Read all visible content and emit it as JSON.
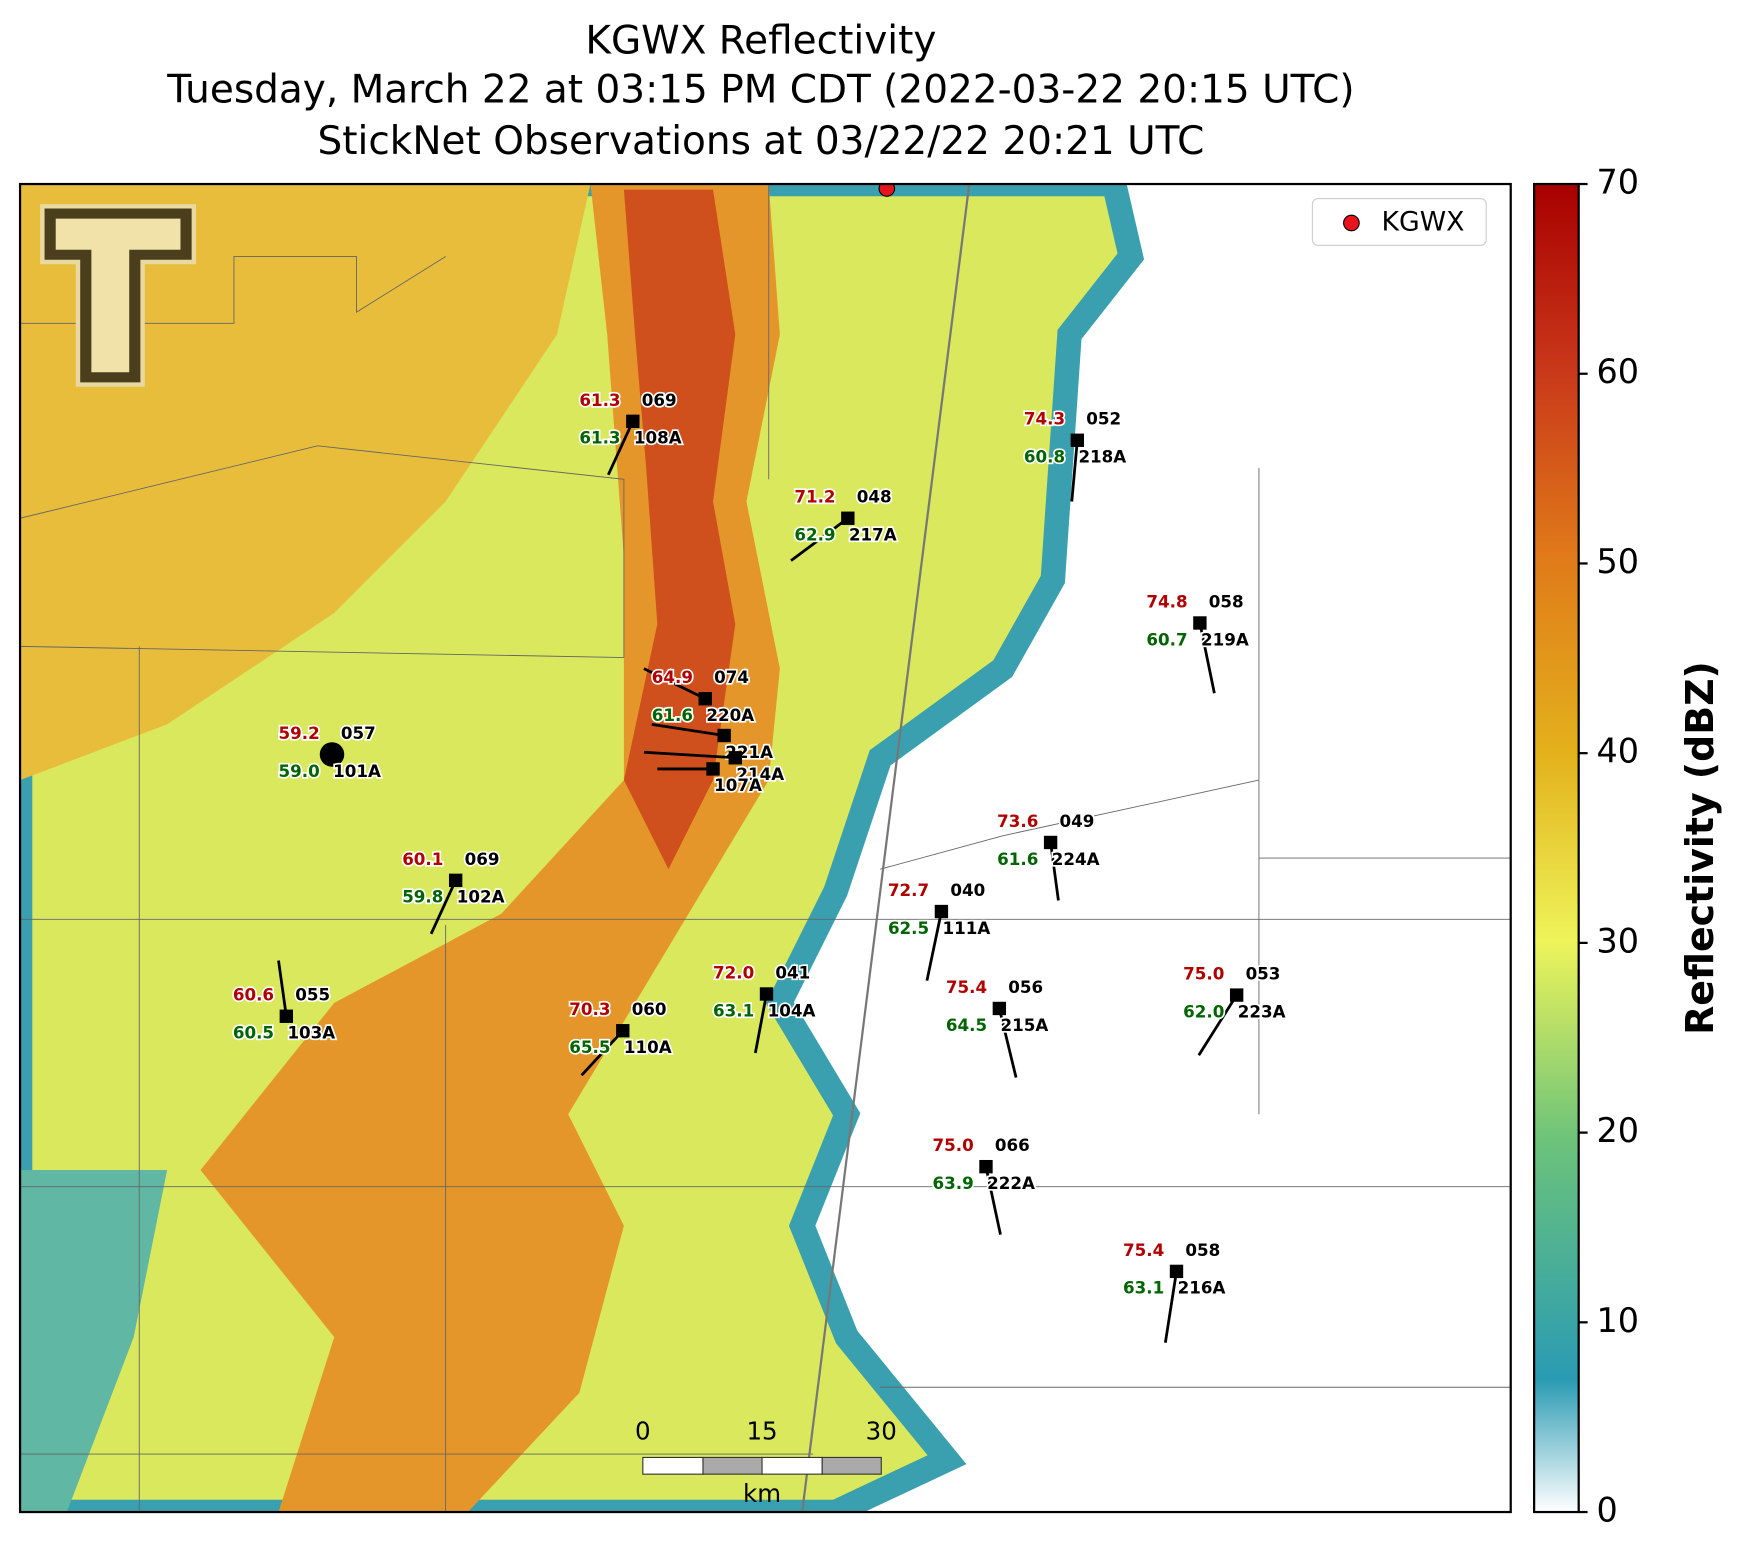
{
  "header": {
    "title": "KGWX Reflectivity",
    "subtitle": "Tuesday, March 22 at 03:15 PM CDT (2022-03-22 20:15 UTC)",
    "observations": "StickNet Observations at 03/22/22 20:21 UTC"
  },
  "legend": {
    "label": "KGWX",
    "color": "#e8141c"
  },
  "colorbar": {
    "label": "Reflectivity (dBZ)",
    "lim": [
      0,
      70
    ],
    "ticks": [
      0,
      10,
      20,
      30,
      40,
      50,
      60,
      70
    ]
  },
  "scale_bar": {
    "labels": [
      "0",
      "15",
      "30"
    ],
    "unit": "km"
  },
  "stations": [
    {
      "id": "108A",
      "temp": "61.3",
      "code": "069",
      "dew": "61.3"
    },
    {
      "id": "217A",
      "temp": "71.2",
      "code": "048",
      "dew": "62.9"
    },
    {
      "id": "218A",
      "temp": "74.3",
      "code": "052",
      "dew": "60.8"
    },
    {
      "id": "219A",
      "temp": "74.8",
      "code": "058",
      "dew": "60.7"
    },
    {
      "id": "101A",
      "temp": "59.2",
      "code": "057",
      "dew": "59.0"
    },
    {
      "id": "102A",
      "temp": "60.1",
      "code": "069",
      "dew": "59.8"
    },
    {
      "id": "103A",
      "temp": "60.6",
      "code": "055",
      "dew": "60.5"
    },
    {
      "id": "110A",
      "temp": "70.3",
      "code": "060",
      "dew": "65.5"
    },
    {
      "id": "104A",
      "temp": "72.0",
      "code": "041",
      "dew": "63.1"
    },
    {
      "id": "111A",
      "temp": "72.7",
      "code": "040",
      "dew": "62.5"
    },
    {
      "id": "224A",
      "temp": "73.6",
      "code": "049",
      "dew": "61.6"
    },
    {
      "id": "215A",
      "temp": "75.4",
      "code": "056",
      "dew": "64.5"
    },
    {
      "id": "223A",
      "temp": "75.0",
      "code": "053",
      "dew": "62.0"
    },
    {
      "id": "222A",
      "temp": "75.0",
      "code": "066",
      "dew": "63.9"
    },
    {
      "id": "216A",
      "temp": "75.4",
      "code": "058",
      "dew": "63.1"
    },
    {
      "id": "220A",
      "temp": "64.9",
      "code": "074",
      "dew": "61.6"
    },
    {
      "id": "221A"
    },
    {
      "id": "214A"
    },
    {
      "id": "107A"
    }
  ]
}
